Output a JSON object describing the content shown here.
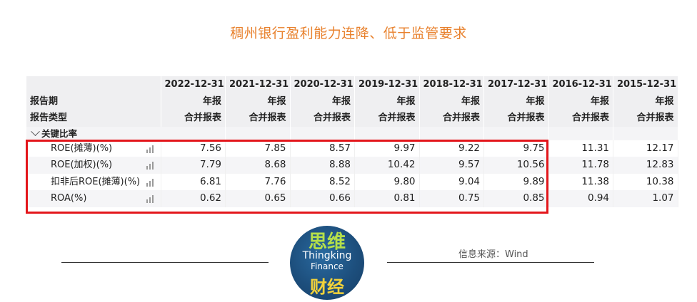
{
  "title": "稠州银行盈利能力连降、低于监管要求",
  "table": {
    "header_labels": {
      "period": "报告期",
      "type": "报告类型"
    },
    "columns": [
      {
        "date": "2022-12-31",
        "period": "年报",
        "type": "合并报表"
      },
      {
        "date": "2021-12-31",
        "period": "年报",
        "type": "合并报表"
      },
      {
        "date": "2020-12-31",
        "period": "年报",
        "type": "合并报表"
      },
      {
        "date": "2019-12-31",
        "period": "年报",
        "type": "合并报表"
      },
      {
        "date": "2018-12-31",
        "period": "年报",
        "type": "合并报表"
      },
      {
        "date": "2017-12-31",
        "period": "年报",
        "type": "合并报表"
      },
      {
        "date": "2016-12-31",
        "period": "年报",
        "type": "合并报表"
      },
      {
        "date": "2015-12-31",
        "period": "年报",
        "type": "合并报表"
      }
    ],
    "section_label": "关键比率",
    "rows": [
      {
        "name": "ROE(摊薄)(%)",
        "values": [
          "7.56",
          "7.85",
          "8.57",
          "9.97",
          "9.22",
          "9.75",
          "11.31",
          "12.17"
        ]
      },
      {
        "name": "ROE(加权)(%)",
        "values": [
          "7.79",
          "8.68",
          "8.88",
          "10.42",
          "9.57",
          "10.56",
          "11.78",
          "12.83"
        ]
      },
      {
        "name": "扣非后ROE(摊薄)(%)",
        "values": [
          "6.81",
          "7.76",
          "8.52",
          "9.80",
          "9.04",
          "9.89",
          "11.38",
          "10.38"
        ]
      },
      {
        "name": "ROA(%)",
        "values": [
          "0.62",
          "0.65",
          "0.66",
          "0.81",
          "0.75",
          "0.85",
          "0.94",
          "1.07"
        ]
      }
    ]
  },
  "footer": {
    "source": "信息来源：Wind",
    "logo": {
      "line1": "思维",
      "line2": "Thingking",
      "line3": "Finance",
      "line4": "财经"
    }
  },
  "colors": {
    "title": "#e8812d",
    "highlight": "#e3161b"
  }
}
